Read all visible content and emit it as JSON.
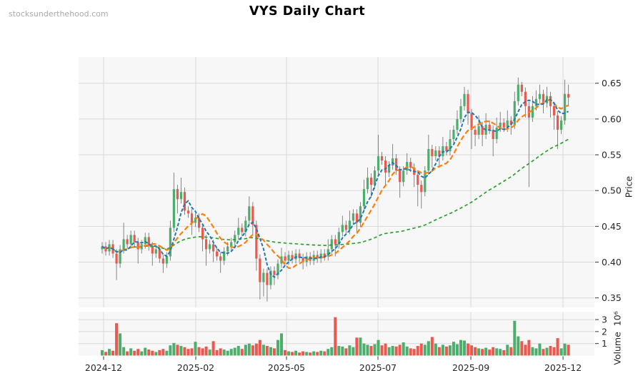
{
  "page": {
    "watermark": "stocksunderthehood.com",
    "title": "VYS Daily Chart"
  },
  "chart_data": {
    "type": "candlestick+volume",
    "title": "VYS Daily Chart",
    "grid": true,
    "legend": "none",
    "price_axis": {
      "label": "Price",
      "side": "right",
      "ticks": [
        0.65,
        0.6,
        0.55,
        0.5,
        0.45,
        0.4,
        0.35
      ],
      "range": [
        0.337,
        0.687
      ]
    },
    "volume_axis": {
      "label": "Volume",
      "unit": "10⁶",
      "side": "right",
      "ticks": [
        3,
        2,
        1
      ],
      "range": [
        0,
        3.7
      ]
    },
    "x_axis": {
      "tick_labels": [
        "2024-12",
        "2025-02",
        "2025-05",
        "2025-07",
        "2025-09",
        "2025-12"
      ],
      "tick_positions": [
        0.4,
        26.1,
        51.4,
        76.9,
        102.8,
        128.5
      ]
    },
    "moving_averages": {
      "short_window": 5,
      "mid_window": 10,
      "long_window": 60,
      "style": "dashed"
    },
    "colors": {
      "up": "#4cae6b",
      "down": "#ec574e",
      "wick": "#787878",
      "ma_short": "#1f77b4",
      "ma_mid": "#ff7f0e",
      "ma_long": "#2ca02c",
      "grid": "#d8d8d8",
      "panel_bg": "#f7f7f7",
      "text": "#262626",
      "watermark": "#a9a9a9"
    },
    "candles_note": "estimated daily OHLCV read from chart, values [open,high,low,close,volume_millions]",
    "candles": [
      [
        0.418,
        0.428,
        0.412,
        0.422,
        0.45
      ],
      [
        0.422,
        0.428,
        0.409,
        0.415,
        0.3
      ],
      [
        0.415,
        0.431,
        0.409,
        0.425,
        0.55
      ],
      [
        0.425,
        0.431,
        0.406,
        0.412,
        0.4
      ],
      [
        0.412,
        0.418,
        0.375,
        0.398,
        2.7
      ],
      [
        0.398,
        0.424,
        0.392,
        0.418,
        1.85
      ],
      [
        0.418,
        0.455,
        0.412,
        0.432,
        0.7
      ],
      [
        0.432,
        0.438,
        0.419,
        0.425,
        0.35
      ],
      [
        0.425,
        0.444,
        0.419,
        0.438,
        0.6
      ],
      [
        0.438,
        0.444,
        0.422,
        0.428,
        0.4
      ],
      [
        0.428,
        0.434,
        0.398,
        0.418,
        0.55
      ],
      [
        0.418,
        0.431,
        0.412,
        0.425,
        0.35
      ],
      [
        0.425,
        0.441,
        0.419,
        0.435,
        0.65
      ],
      [
        0.435,
        0.441,
        0.416,
        0.422,
        0.5
      ],
      [
        0.422,
        0.428,
        0.395,
        0.412,
        0.4
      ],
      [
        0.412,
        0.424,
        0.406,
        0.418,
        0.3
      ],
      [
        0.418,
        0.424,
        0.399,
        0.405,
        0.45
      ],
      [
        0.405,
        0.411,
        0.385,
        0.398,
        0.55
      ],
      [
        0.398,
        0.414,
        0.392,
        0.408,
        0.4
      ],
      [
        0.408,
        0.458,
        0.402,
        0.448,
        0.85
      ],
      [
        0.448,
        0.525,
        0.442,
        0.502,
        1.05
      ],
      [
        0.502,
        0.508,
        0.468,
        0.488,
        0.9
      ],
      [
        0.488,
        0.518,
        0.482,
        0.498,
        0.8
      ],
      [
        0.498,
        0.504,
        0.466,
        0.472,
        0.7
      ],
      [
        0.472,
        0.478,
        0.462,
        0.468,
        0.55
      ],
      [
        0.468,
        0.474,
        0.438,
        0.455,
        0.6
      ],
      [
        0.455,
        0.468,
        0.449,
        0.462,
        1.15
      ],
      [
        0.462,
        0.468,
        0.442,
        0.448,
        0.7
      ],
      [
        0.448,
        0.454,
        0.415,
        0.432,
        0.6
      ],
      [
        0.432,
        0.438,
        0.395,
        0.418,
        0.75
      ],
      [
        0.418,
        0.431,
        0.412,
        0.425,
        0.5
      ],
      [
        0.425,
        0.431,
        0.4,
        0.415,
        1.2
      ],
      [
        0.415,
        0.421,
        0.402,
        0.408,
        0.45
      ],
      [
        0.408,
        0.414,
        0.385,
        0.402,
        0.6
      ],
      [
        0.402,
        0.421,
        0.396,
        0.415,
        0.5
      ],
      [
        0.415,
        0.428,
        0.409,
        0.422,
        0.4
      ],
      [
        0.422,
        0.434,
        0.416,
        0.428,
        0.55
      ],
      [
        0.428,
        0.444,
        0.422,
        0.438,
        0.65
      ],
      [
        0.438,
        0.462,
        0.432,
        0.448,
        0.8
      ],
      [
        0.448,
        0.454,
        0.436,
        0.442,
        0.55
      ],
      [
        0.442,
        0.464,
        0.436,
        0.458,
        0.9
      ],
      [
        0.458,
        0.492,
        0.452,
        0.478,
        1.0
      ],
      [
        0.478,
        0.484,
        0.438,
        0.452,
        0.85
      ],
      [
        0.452,
        0.458,
        0.388,
        0.405,
        1.0
      ],
      [
        0.405,
        0.411,
        0.348,
        0.372,
        1.3
      ],
      [
        0.372,
        0.391,
        0.352,
        0.385,
        0.9
      ],
      [
        0.385,
        0.391,
        0.345,
        0.368,
        0.8
      ],
      [
        0.368,
        0.394,
        0.362,
        0.388,
        0.7
      ],
      [
        0.388,
        0.394,
        0.368,
        0.382,
        0.6
      ],
      [
        0.382,
        0.404,
        0.376,
        0.398,
        1.3
      ],
      [
        0.398,
        0.42,
        0.392,
        0.408,
        1.85
      ],
      [
        0.408,
        0.414,
        0.396,
        0.402,
        0.45
      ],
      [
        0.402,
        0.416,
        0.396,
        0.41,
        0.35
      ],
      [
        0.41,
        0.416,
        0.398,
        0.404,
        0.3
      ],
      [
        0.404,
        0.418,
        0.398,
        0.412,
        0.4
      ],
      [
        0.412,
        0.418,
        0.4,
        0.406,
        0.25
      ],
      [
        0.406,
        0.412,
        0.39,
        0.4,
        0.35
      ],
      [
        0.4,
        0.414,
        0.394,
        0.408,
        0.3
      ],
      [
        0.408,
        0.414,
        0.396,
        0.402,
        0.25
      ],
      [
        0.402,
        0.416,
        0.396,
        0.41,
        0.35
      ],
      [
        0.41,
        0.416,
        0.399,
        0.405,
        0.3
      ],
      [
        0.405,
        0.418,
        0.399,
        0.412,
        0.4
      ],
      [
        0.412,
        0.418,
        0.402,
        0.408,
        0.35
      ],
      [
        0.408,
        0.432,
        0.402,
        0.418,
        0.55
      ],
      [
        0.418,
        0.438,
        0.412,
        0.432,
        0.7
      ],
      [
        0.432,
        0.438,
        0.408,
        0.425,
        3.2
      ],
      [
        0.425,
        0.448,
        0.419,
        0.442,
        0.8
      ],
      [
        0.442,
        0.465,
        0.436,
        0.452,
        0.75
      ],
      [
        0.452,
        0.458,
        0.439,
        0.445,
        0.6
      ],
      [
        0.445,
        0.472,
        0.439,
        0.458,
        0.85
      ],
      [
        0.458,
        0.474,
        0.452,
        0.468,
        0.7
      ],
      [
        0.468,
        0.474,
        0.44,
        0.455,
        1.5
      ],
      [
        0.455,
        0.484,
        0.449,
        0.478,
        1.5
      ],
      [
        0.478,
        0.515,
        0.472,
        0.502,
        1.0
      ],
      [
        0.502,
        0.532,
        0.496,
        0.518,
        0.9
      ],
      [
        0.518,
        0.524,
        0.49,
        0.508,
        0.8
      ],
      [
        0.508,
        0.534,
        0.502,
        0.528,
        0.95
      ],
      [
        0.528,
        0.578,
        0.522,
        0.548,
        1.3
      ],
      [
        0.548,
        0.554,
        0.536,
        0.542,
        0.85
      ],
      [
        0.542,
        0.548,
        0.508,
        0.525,
        1.0
      ],
      [
        0.525,
        0.541,
        0.519,
        0.535,
        0.7
      ],
      [
        0.535,
        0.565,
        0.529,
        0.545,
        0.8
      ],
      [
        0.545,
        0.551,
        0.522,
        0.528,
        0.75
      ],
      [
        0.528,
        0.534,
        0.49,
        0.512,
        0.9
      ],
      [
        0.512,
        0.534,
        0.506,
        0.528,
        1.1
      ],
      [
        0.528,
        0.552,
        0.522,
        0.54,
        0.75
      ],
      [
        0.54,
        0.546,
        0.526,
        0.532,
        0.6
      ],
      [
        0.532,
        0.538,
        0.505,
        0.522,
        0.55
      ],
      [
        0.522,
        0.528,
        0.478,
        0.508,
        0.8
      ],
      [
        0.508,
        0.514,
        0.475,
        0.498,
        1.0
      ],
      [
        0.498,
        0.534,
        0.492,
        0.528,
        0.9
      ],
      [
        0.528,
        0.578,
        0.522,
        0.558,
        1.2
      ],
      [
        0.558,
        0.564,
        0.532,
        0.548,
        1.55
      ],
      [
        0.548,
        0.562,
        0.542,
        0.556,
        1.0
      ],
      [
        0.556,
        0.562,
        0.532,
        0.548,
        0.7
      ],
      [
        0.548,
        0.575,
        0.542,
        0.562,
        0.9
      ],
      [
        0.562,
        0.568,
        0.549,
        0.555,
        0.75
      ],
      [
        0.555,
        0.585,
        0.549,
        0.572,
        0.85
      ],
      [
        0.572,
        0.591,
        0.566,
        0.585,
        1.15
      ],
      [
        0.585,
        0.612,
        0.579,
        0.6,
        0.95
      ],
      [
        0.6,
        0.628,
        0.594,
        0.618,
        1.3
      ],
      [
        0.618,
        0.645,
        0.612,
        0.635,
        1.25
      ],
      [
        0.635,
        0.641,
        0.592,
        0.608,
        1.0
      ],
      [
        0.608,
        0.614,
        0.558,
        0.585,
        0.85
      ],
      [
        0.585,
        0.591,
        0.562,
        0.578,
        0.7
      ],
      [
        0.578,
        0.605,
        0.572,
        0.59,
        0.6
      ],
      [
        0.59,
        0.596,
        0.562,
        0.578,
        0.55
      ],
      [
        0.578,
        0.608,
        0.572,
        0.592,
        0.65
      ],
      [
        0.592,
        0.598,
        0.579,
        0.585,
        0.5
      ],
      [
        0.585,
        0.591,
        0.548,
        0.572,
        0.7
      ],
      [
        0.572,
        0.602,
        0.566,
        0.588,
        0.6
      ],
      [
        0.588,
        0.61,
        0.582,
        0.595,
        0.55
      ],
      [
        0.595,
        0.601,
        0.582,
        0.588,
        0.45
      ],
      [
        0.588,
        0.612,
        0.582,
        0.598,
        0.9
      ],
      [
        0.598,
        0.604,
        0.578,
        0.592,
        0.7
      ],
      [
        0.592,
        0.638,
        0.586,
        0.625,
        2.9
      ],
      [
        0.625,
        0.658,
        0.619,
        0.648,
        1.6
      ],
      [
        0.648,
        0.652,
        0.632,
        0.638,
        1.2
      ],
      [
        0.638,
        0.644,
        0.602,
        0.618,
        0.9
      ],
      [
        0.618,
        0.624,
        0.505,
        0.602,
        1.3
      ],
      [
        0.602,
        0.632,
        0.596,
        0.618,
        0.7
      ],
      [
        0.618,
        0.64,
        0.612,
        0.628,
        0.6
      ],
      [
        0.628,
        0.648,
        0.622,
        0.635,
        1.0
      ],
      [
        0.635,
        0.641,
        0.608,
        0.622,
        0.55
      ],
      [
        0.622,
        0.645,
        0.616,
        0.632,
        0.65
      ],
      [
        0.632,
        0.638,
        0.602,
        0.618,
        0.8
      ],
      [
        0.618,
        0.624,
        0.585,
        0.605,
        0.7
      ],
      [
        0.605,
        0.611,
        0.558,
        0.585,
        1.45
      ],
      [
        0.585,
        0.604,
        0.579,
        0.598,
        0.6
      ],
      [
        0.598,
        0.655,
        0.592,
        0.635,
        1.0
      ],
      [
        0.635,
        0.648,
        0.618,
        0.63,
        0.9
      ]
    ]
  }
}
